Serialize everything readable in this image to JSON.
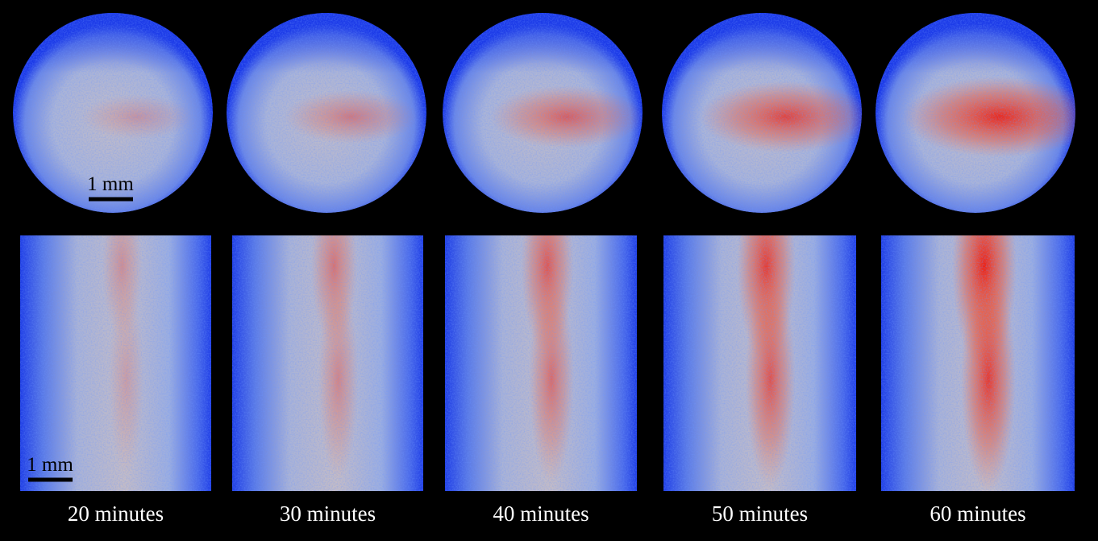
{
  "panels": [
    {
      "label": "20 minutes"
    },
    {
      "label": "30 minutes"
    },
    {
      "label": "40 minutes"
    },
    {
      "label": "50 minutes"
    },
    {
      "label": "60 minutes"
    }
  ],
  "scale_bars": [
    {
      "label": "1 mm"
    },
    {
      "label": "1 mm"
    }
  ]
}
